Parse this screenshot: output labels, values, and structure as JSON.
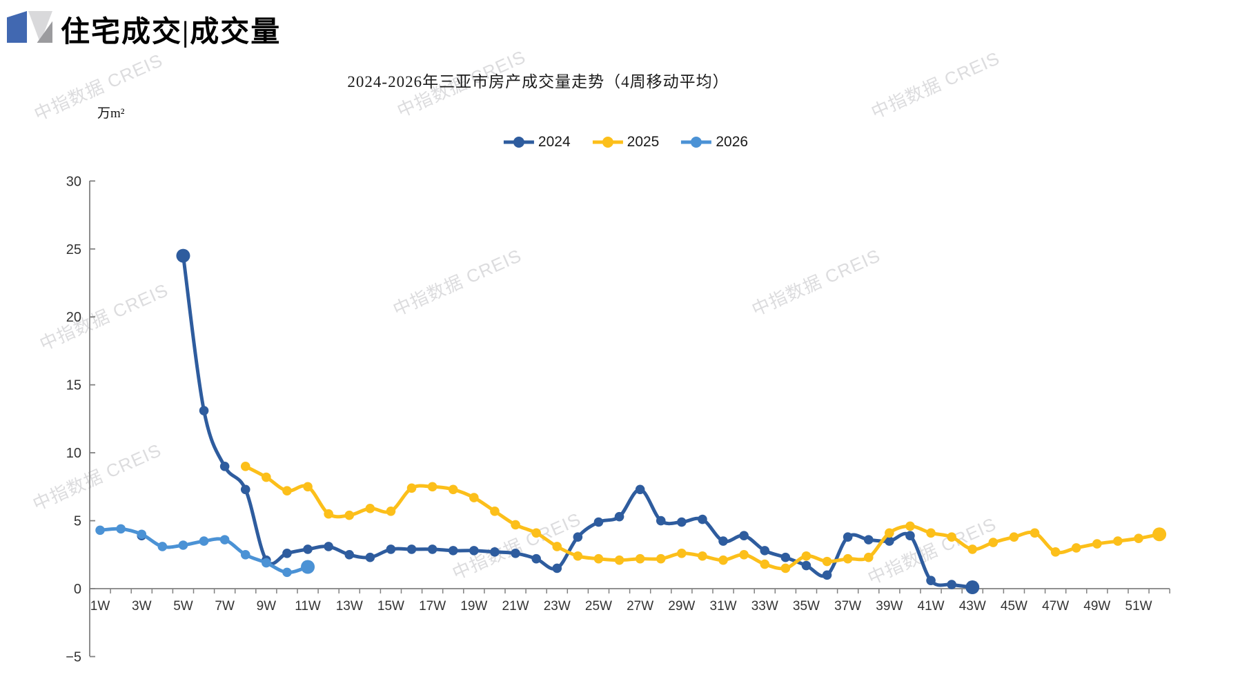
{
  "header": {
    "title": "住宅成交|成交量"
  },
  "watermark": {
    "text": "中指数据 CREIS"
  },
  "chart_data": {
    "type": "line",
    "title": "2024-2026年三亚市房产成交量走势（4周移动平均）",
    "unit_label": "万m²",
    "xlabel": "",
    "ylabel": "万m²",
    "ylim": [
      -5,
      30
    ],
    "y_ticks": [
      30,
      25,
      20,
      15,
      10,
      5,
      0,
      -5
    ],
    "y_tick_labels": [
      "30",
      "25",
      "20",
      "15",
      "10",
      "5",
      "0",
      "−5"
    ],
    "grid": false,
    "legend_position": "top",
    "categories": [
      "1W",
      "2W",
      "3W",
      "4W",
      "5W",
      "6W",
      "7W",
      "8W",
      "9W",
      "10W",
      "11W",
      "12W",
      "13W",
      "14W",
      "15W",
      "16W",
      "17W",
      "18W",
      "19W",
      "20W",
      "21W",
      "22W",
      "23W",
      "24W",
      "25W",
      "26W",
      "27W",
      "28W",
      "29W",
      "30W",
      "31W",
      "32W",
      "33W",
      "34W",
      "35W",
      "36W",
      "37W",
      "38W",
      "39W",
      "40W",
      "41W",
      "42W",
      "43W",
      "44W",
      "45W",
      "46W",
      "47W",
      "48W",
      "49W",
      "50W",
      "51W",
      "52W"
    ],
    "x_tick_labels": [
      "1W",
      "3W",
      "5W",
      "7W",
      "9W",
      "11W",
      "13W",
      "15W",
      "17W",
      "19W",
      "21W",
      "23W",
      "25W",
      "27W",
      "29W",
      "31W",
      "33W",
      "35W",
      "37W",
      "39W",
      "41W",
      "43W",
      "45W",
      "47W",
      "49W",
      "51W"
    ],
    "series": [
      {
        "name": "2024",
        "color": "#2E5C9E",
        "emphasis_weeks": [
          5,
          43
        ],
        "values": [
          null,
          null,
          3.9,
          null,
          24.5,
          13.1,
          9.0,
          7.3,
          2.1,
          2.6,
          2.9,
          3.1,
          2.5,
          2.3,
          2.9,
          2.9,
          2.9,
          2.8,
          2.8,
          2.7,
          2.6,
          2.2,
          1.5,
          3.8,
          4.9,
          5.3,
          7.3,
          5.0,
          4.9,
          5.1,
          3.5,
          3.9,
          2.8,
          2.3,
          1.7,
          1.0,
          3.8,
          3.6,
          3.5,
          3.9,
          0.6,
          0.3,
          0.1,
          null,
          null,
          null,
          null,
          null,
          null,
          null,
          null,
          null
        ]
      },
      {
        "name": "2025",
        "color": "#FCBF1A",
        "emphasis_weeks": [
          52
        ],
        "values": [
          null,
          null,
          null,
          null,
          null,
          null,
          null,
          9.0,
          8.2,
          7.2,
          7.5,
          5.5,
          5.4,
          5.9,
          5.7,
          7.4,
          7.5,
          7.3,
          6.7,
          5.7,
          4.7,
          4.1,
          3.1,
          2.4,
          2.2,
          2.1,
          2.2,
          2.2,
          2.6,
          2.4,
          2.1,
          2.5,
          1.8,
          1.5,
          2.4,
          2.0,
          2.2,
          2.3,
          4.1,
          4.6,
          4.1,
          3.8,
          2.9,
          3.4,
          3.8,
          4.1,
          2.7,
          3.0,
          3.3,
          3.5,
          3.7,
          4.0
        ]
      },
      {
        "name": "2026",
        "color": "#4B92D5",
        "emphasis_weeks": [
          11
        ],
        "values": [
          4.3,
          4.4,
          4.0,
          3.1,
          3.2,
          3.5,
          3.6,
          2.5,
          1.9,
          1.2,
          1.6,
          null,
          null,
          null,
          null,
          null,
          null,
          null,
          null,
          null,
          null,
          null,
          null,
          null,
          null,
          null,
          null,
          null,
          null,
          null,
          null,
          null,
          null,
          null,
          null,
          null,
          null,
          null,
          null,
          null,
          null,
          null,
          null,
          null,
          null,
          null,
          null,
          null,
          null,
          null,
          null,
          null
        ]
      }
    ]
  }
}
